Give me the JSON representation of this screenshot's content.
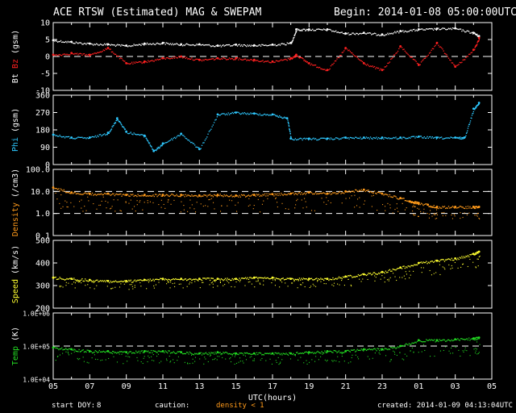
{
  "header": {
    "title": "ACE RTSW (Estimated) MAG & SWEPAM",
    "begin": "Begin: 2014-01-08 05:00:00UTC"
  },
  "footer": {
    "start_doy_label": "start DOY:",
    "start_doy_value": "8",
    "caution_label": "caution:",
    "caution_note": "density < 1",
    "created": "created: 2014-01-09 04:13:04UTC"
  },
  "colors": {
    "bt": "#ffffff",
    "bz": "#ff2020",
    "phi": "#2ec8ff",
    "density": "#ff9a1a",
    "speed": "#ffff30",
    "temp": "#22dd22",
    "axis": "#ffffff",
    "dash": "#ffffff"
  },
  "chart_data": {
    "type": "scatter",
    "xlabel": "UTC(hours)",
    "x_ticks": [
      "05",
      "07",
      "09",
      "11",
      "13",
      "15",
      "17",
      "19",
      "21",
      "23",
      "01",
      "03",
      "05"
    ],
    "x_range_hours": [
      0,
      24
    ],
    "panels": [
      {
        "id": "mag",
        "ylabel_parts": [
          "Bt",
          "Bz",
          "(gsm)"
        ],
        "ylim": [
          -10,
          10
        ],
        "y_ticks": [
          "10",
          "5",
          "0",
          "-5",
          "-10"
        ],
        "y_tick_values": [
          10,
          5,
          0,
          -5,
          -10
        ],
        "dashed": [
          0
        ],
        "series": [
          {
            "name": "Bt",
            "color_key": "bt",
            "x": [
              0,
              1,
              2,
              3,
              4,
              5,
              6,
              7,
              8,
              9,
              10,
              11,
              12,
              13,
              13.3,
              14,
              15,
              16,
              17,
              18,
              19,
              20,
              21,
              22,
              23,
              23.3
            ],
            "y": [
              4.8,
              4.3,
              3.8,
              3.6,
              3.2,
              3.8,
              4.0,
              3.6,
              3.6,
              3.2,
              3.5,
              3.3,
              3.5,
              4.0,
              8.0,
              8.0,
              8.0,
              6.8,
              7.0,
              6.5,
              7.5,
              8.0,
              8.2,
              8.3,
              7.0,
              6.0
            ]
          },
          {
            "name": "Bz",
            "color_key": "bz",
            "x": [
              0,
              1,
              2,
              3,
              4,
              5,
              6,
              7,
              8,
              9,
              10,
              11,
              12,
              13,
              13.3,
              14,
              15,
              16,
              17,
              18,
              19,
              20,
              21,
              22,
              23,
              23.3
            ],
            "y": [
              0.5,
              1.0,
              0.5,
              2.5,
              -2.0,
              -1.5,
              -0.5,
              0.0,
              -1.0,
              -0.5,
              -0.5,
              -1.0,
              -1.5,
              -0.5,
              0.5,
              -2.0,
              -4.0,
              2.5,
              -2.0,
              -4.0,
              3.0,
              -2.5,
              4.0,
              -3.0,
              2.0,
              5.5
            ]
          }
        ]
      },
      {
        "id": "phi",
        "ylabel_parts": [
          "Phi",
          "(gsm)"
        ],
        "ylim": [
          0,
          360
        ],
        "y_ticks": [
          "360",
          "270",
          "180",
          "90",
          "0"
        ],
        "y_tick_values": [
          360,
          270,
          180,
          90,
          0
        ],
        "dashed": [],
        "series": [
          {
            "name": "Phi",
            "color_key": "phi",
            "x": [
              0,
              1,
              2,
              3,
              3.5,
              4,
              5,
              5.5,
              6,
              7,
              8,
              9,
              10,
              11,
              12,
              12.8,
              13,
              14,
              15,
              16,
              17,
              18,
              19,
              20,
              21,
              22,
              22.5,
              23,
              23.3
            ],
            "y": [
              155,
              140,
              140,
              165,
              240,
              170,
              150,
              70,
              110,
              160,
              80,
              260,
              270,
              265,
              260,
              240,
              135,
              135,
              135,
              140,
              140,
              140,
              140,
              145,
              140,
              140,
              140,
              290,
              320
            ]
          }
        ]
      },
      {
        "id": "density",
        "ylabel_parts": [
          "Density",
          "(/cm3)"
        ],
        "log": true,
        "ylim": [
          0.1,
          100
        ],
        "y_ticks": [
          "100.0",
          "10.0",
          "1.0",
          "0.1"
        ],
        "y_tick_values": [
          100,
          10,
          1,
          0.1
        ],
        "dashed": [
          10,
          1
        ],
        "series": [
          {
            "name": "Density",
            "color_key": "density",
            "x": [
              0,
              1,
              2,
              3,
              4,
              5,
              6,
              7,
              8,
              9,
              10,
              11,
              12,
              13,
              14,
              15,
              16,
              17,
              18,
              19,
              20,
              19.5,
              20.5,
              21,
              22,
              23,
              23.3
            ],
            "y": [
              15,
              9,
              8,
              8,
              7,
              7,
              7,
              7,
              6.5,
              7,
              6.5,
              7,
              7.5,
              8,
              9,
              8,
              10,
              12,
              8,
              5,
              3,
              3.5,
              2.5,
              2,
              2,
              2,
              2
            ]
          }
        ]
      },
      {
        "id": "speed",
        "ylabel_parts": [
          "Speed",
          "(km/s)"
        ],
        "ylim": [
          200,
          500
        ],
        "y_ticks": [
          "500",
          "400",
          "300",
          "200"
        ],
        "y_tick_values": [
          500,
          400,
          300,
          200
        ],
        "dashed": [],
        "series": [
          {
            "name": "Speed",
            "color_key": "speed",
            "x": [
              0,
              1,
              2,
              3,
              4,
              5,
              6,
              7,
              8,
              9,
              10,
              11,
              12,
              13,
              14,
              15,
              16,
              17,
              18,
              19,
              20,
              21,
              22,
              23,
              23.3
            ],
            "y": [
              335,
              330,
              325,
              320,
              320,
              325,
              330,
              330,
              330,
              330,
              330,
              335,
              335,
              330,
              330,
              330,
              340,
              350,
              360,
              380,
              400,
              410,
              420,
              440,
              450
            ]
          }
        ]
      },
      {
        "id": "temp",
        "ylabel_parts": [
          "Temp",
          "(K)"
        ],
        "log": true,
        "ylim": [
          10000,
          1000000
        ],
        "y_ticks": [
          "1.0E+06",
          "1.0E+05",
          "1.0E+04"
        ],
        "y_tick_values": [
          1000000,
          100000,
          10000
        ],
        "dashed": [
          100000
        ],
        "series": [
          {
            "name": "Temp",
            "color_key": "temp",
            "x": [
              0,
              1,
              2,
              3,
              4,
              5,
              6,
              7,
              8,
              9,
              10,
              11,
              12,
              13,
              14,
              15,
              16,
              17,
              18,
              19,
              20,
              21,
              22,
              23,
              23.3
            ],
            "y": [
              90000,
              80000,
              70000,
              70000,
              65000,
              70000,
              70000,
              65000,
              60000,
              65000,
              60000,
              60000,
              60000,
              60000,
              65000,
              70000,
              70000,
              80000,
              80000,
              100000,
              150000,
              150000,
              160000,
              170000,
              180000
            ]
          }
        ]
      }
    ]
  }
}
